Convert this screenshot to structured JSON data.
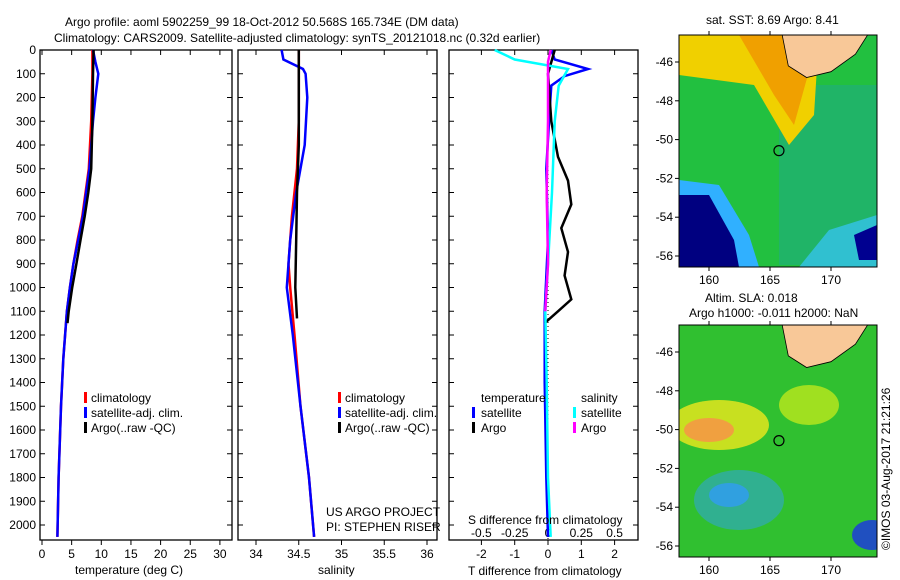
{
  "header": {
    "title_line1": "Argo profile: aoml 5902259_99 18-Oct-2012 50.568S 165.734E (DM data)",
    "title_line2": "Climatology: CARS2009. Satellite-adjusted climatology: synTS_20121018.nc (0.32d earlier)"
  },
  "colors": {
    "climatology": "#ff0000",
    "satellite": "#0000ff",
    "argo": "#000000",
    "salinity_satellite": "#00ffff",
    "salinity_argo": "#ff00ff"
  },
  "chart_data": [
    {
      "type": "line",
      "id": "temperature",
      "xlabel": "temperature (deg C)",
      "ylabel": "",
      "xlim": [
        -1,
        31
      ],
      "ylim": [
        2050,
        0
      ],
      "xticks": [
        "0",
        "5",
        "10",
        "15",
        "20",
        "25",
        "30"
      ],
      "yticks": [
        "0",
        "100",
        "200",
        "300",
        "400",
        "500",
        "600",
        "700",
        "800",
        "900",
        "1000",
        "1100",
        "1200",
        "1300",
        "1400",
        "1500",
        "1600",
        "1700",
        "1800",
        "1900",
        "2000"
      ],
      "legend": [
        "climatology",
        "satellite-adj. clim.",
        "Argo(..raw -QC)"
      ],
      "series": [
        {
          "name": "climatology",
          "color": "#ff0000",
          "depth": [
            0,
            100,
            300,
            500,
            700,
            800,
            900,
            1000,
            1100,
            1300,
            1500,
            1800,
            2050
          ],
          "values": [
            8.5,
            8.5,
            8.3,
            7.9,
            6.8,
            6.0,
            5.3,
            4.7,
            4.2,
            3.6,
            3.2,
            2.8,
            2.6
          ]
        },
        {
          "name": "satellite-adj. clim.",
          "color": "#0000ff",
          "depth": [
            0,
            50,
            100,
            200,
            300,
            500,
            700,
            800,
            900,
            1000,
            1100,
            1300,
            1500,
            1800,
            2050
          ],
          "values": [
            8.6,
            9.0,
            9.5,
            9.0,
            8.6,
            8.0,
            6.9,
            6.1,
            5.3,
            4.7,
            4.2,
            3.6,
            3.2,
            2.8,
            2.6
          ]
        },
        {
          "name": "Argo(..raw -QC)",
          "color": "#000000",
          "depth": [
            0,
            100,
            300,
            500,
            600,
            700,
            800,
            900,
            1000,
            1100,
            1150
          ],
          "values": [
            8.7,
            8.6,
            8.5,
            8.3,
            7.8,
            7.2,
            6.5,
            5.8,
            5.1,
            4.5,
            4.3
          ]
        }
      ]
    },
    {
      "type": "line",
      "id": "salinity",
      "xlabel": "salinity",
      "xlim": [
        33.8,
        36.1
      ],
      "ylim": [
        2050,
        0
      ],
      "xticks": [
        "34",
        "34.5",
        "35",
        "35.5",
        "36"
      ],
      "legend": [
        "climatology",
        "satellite-adj. clim.",
        "Argo(..raw -QC)"
      ],
      "annotation": [
        "US ARGO PROJECT",
        "PI: STEPHEN RISER"
      ],
      "series": [
        {
          "name": "climatology",
          "color": "#ff0000",
          "depth": [
            0,
            300,
            500,
            700,
            900,
            1000,
            1200,
            1500,
            1800,
            2050
          ],
          "values": [
            34.5,
            34.5,
            34.48,
            34.42,
            34.38,
            34.4,
            34.45,
            34.52,
            34.62,
            34.68
          ]
        },
        {
          "name": "satellite-adj. clim.",
          "color": "#0000ff",
          "depth": [
            0,
            40,
            80,
            100,
            200,
            400,
            600,
            800,
            1000,
            1200,
            1500,
            1800,
            2050
          ],
          "values": [
            34.3,
            34.32,
            34.55,
            34.58,
            34.6,
            34.57,
            34.47,
            34.4,
            34.36,
            34.43,
            34.52,
            34.62,
            34.68
          ]
        },
        {
          "name": "Argo(..raw -QC)",
          "color": "#000000",
          "depth": [
            0,
            200,
            400,
            600,
            800,
            1000,
            1130
          ],
          "values": [
            34.5,
            34.5,
            34.5,
            34.48,
            34.47,
            34.46,
            34.48
          ]
        }
      ]
    },
    {
      "type": "line",
      "id": "difference",
      "xlabel": "T difference from climatology",
      "x2label": "S difference from climatology",
      "xlim": [
        -2.9,
        2.9
      ],
      "ylim": [
        2050,
        0
      ],
      "xticks": [
        "-2",
        "-1",
        "0",
        "1",
        "2"
      ],
      "x2ticks": [
        "-0.5",
        "-0.25",
        "0",
        "0.25",
        "0.5"
      ],
      "legend_temperature": [
        "temperature",
        "satellite",
        "Argo"
      ],
      "legend_salinity": [
        "salinity",
        "satellite",
        "Argo"
      ],
      "series": [
        {
          "name": "temperature satellite",
          "color": "#0000ff",
          "unit": "T",
          "depth": [
            0,
            40,
            80,
            110,
            150,
            250,
            500,
            800,
            1100,
            1400,
            1800,
            2050
          ],
          "values": [
            0.1,
            0.2,
            1.2,
            0.5,
            0.1,
            0.05,
            -0.05,
            0.0,
            -0.1,
            -0.1,
            -0.05,
            0.0
          ]
        },
        {
          "name": "temperature Argo",
          "color": "#000000",
          "unit": "T",
          "depth": [
            0,
            100,
            300,
            450,
            550,
            650,
            750,
            850,
            950,
            1050,
            1100,
            1150
          ],
          "values": [
            0.2,
            0.0,
            0.1,
            0.3,
            0.6,
            0.7,
            0.4,
            0.6,
            0.5,
            0.7,
            0.3,
            -0.1
          ]
        },
        {
          "name": "salinity satellite",
          "color": "#00ffff",
          "unit": "S",
          "depth": [
            0,
            40,
            80,
            150,
            300,
            600,
            900,
            1100,
            1400,
            1800,
            2050
          ],
          "values": [
            -0.4,
            -0.25,
            0.15,
            0.08,
            0.05,
            0.03,
            0.0,
            -0.02,
            -0.01,
            0.0,
            0.02
          ]
        },
        {
          "name": "salinity Argo",
          "color": "#ff00ff",
          "unit": "S",
          "depth": [
            0,
            50,
            300,
            600,
            900,
            1100
          ],
          "values": [
            0.02,
            0.0,
            0.0,
            -0.01,
            0.0,
            -0.02
          ]
        }
      ]
    },
    {
      "type": "heatmap",
      "id": "sst_map",
      "title": "sat. SST: 8.69 Argo: 8.41",
      "xticks": [
        "160",
        "165",
        "170"
      ],
      "yticks": [
        "-46",
        "-48",
        "-50",
        "-52",
        "-54",
        "-56"
      ],
      "argo_position": [
        165.734,
        -50.568
      ]
    },
    {
      "type": "heatmap",
      "id": "sla_map",
      "title_line1": "Altim. SLA: 0.018",
      "title_line2": "Argo h1000: -0.011 h2000: NaN",
      "xticks": [
        "160",
        "165",
        "170"
      ],
      "yticks": [
        "-46",
        "-48",
        "-50",
        "-52",
        "-54",
        "-56"
      ],
      "argo_position": [
        165.734,
        -50.568
      ]
    }
  ],
  "footer": {
    "credit": "©IMOS 03-Aug-2017 21:21:26"
  }
}
